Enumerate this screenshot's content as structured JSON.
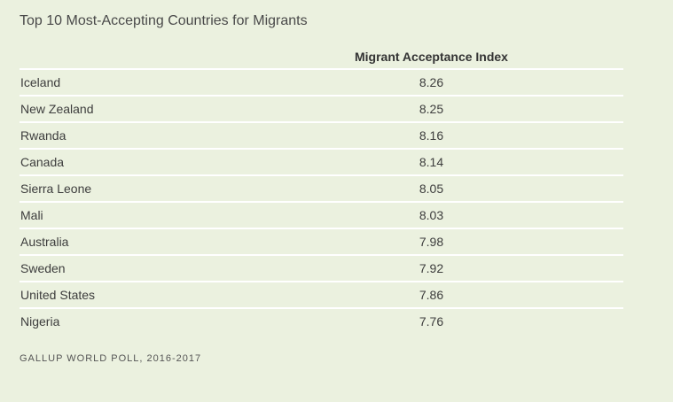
{
  "title": "Top 10 Most-Accepting Countries for Migrants",
  "source": "GALLUP WORLD POLL, 2016-2017",
  "colors": {
    "background": "#ebf1df",
    "rule": "#ffffff"
  },
  "chart_data": {
    "type": "table",
    "title": "Top 10 Most-Accepting Countries for Migrants",
    "columns": [
      "",
      "Migrant Acceptance Index"
    ],
    "rows": [
      {
        "country": "Iceland",
        "value": "8.26"
      },
      {
        "country": "New Zealand",
        "value": "8.25"
      },
      {
        "country": "Rwanda",
        "value": "8.16"
      },
      {
        "country": "Canada",
        "value": "8.14"
      },
      {
        "country": "Sierra Leone",
        "value": "8.05"
      },
      {
        "country": "Mali",
        "value": "8.03"
      },
      {
        "country": "Australia",
        "value": "7.98"
      },
      {
        "country": "Sweden",
        "value": "7.92"
      },
      {
        "country": "United States",
        "value": "7.86"
      },
      {
        "country": "Nigeria",
        "value": "7.76"
      }
    ]
  }
}
